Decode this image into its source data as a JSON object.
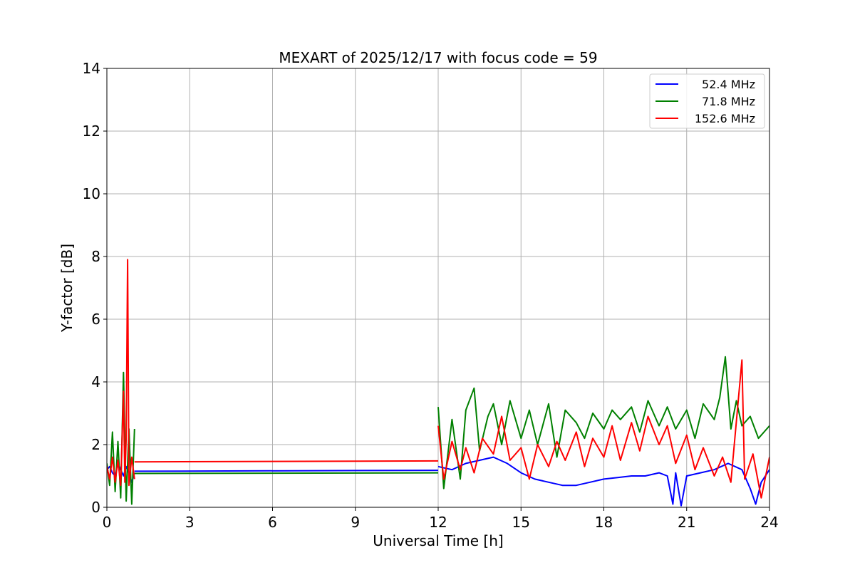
{
  "chart_data": {
    "type": "line",
    "title": "MEXART of 2025/12/17 with focus code = 59",
    "xlabel": "Universal Time [h]",
    "ylabel": "Y-factor [dB]",
    "xlim": [
      0,
      24
    ],
    "ylim": [
      0,
      14
    ],
    "xticks": [
      0,
      3,
      6,
      9,
      12,
      15,
      18,
      21,
      24
    ],
    "yticks": [
      0,
      2,
      4,
      6,
      8,
      10,
      12,
      14
    ],
    "grid": true,
    "legend_position": "top-right",
    "series": [
      {
        "name": "52.4 MHz",
        "color": "#0000ff",
        "segments": [
          [
            [
              0.0,
              1.2
            ],
            [
              0.1,
              1.3
            ],
            [
              0.2,
              1.1
            ],
            [
              0.3,
              1.0
            ],
            [
              0.4,
              1.4
            ],
            [
              0.5,
              1.2
            ],
            [
              0.6,
              1.0
            ],
            [
              0.7,
              1.3
            ],
            [
              0.8,
              1.1
            ],
            [
              0.9,
              0.8
            ],
            [
              1.0,
              1.1
            ]
          ],
          [
            [
              1.0,
              1.15
            ],
            [
              12.0,
              1.18
            ]
          ],
          [
            [
              12.0,
              1.3
            ],
            [
              12.5,
              1.2
            ],
            [
              13.0,
              1.4
            ],
            [
              13.5,
              1.5
            ],
            [
              14.0,
              1.6
            ],
            [
              14.5,
              1.4
            ],
            [
              15.0,
              1.1
            ],
            [
              15.5,
              0.9
            ],
            [
              16.0,
              0.8
            ],
            [
              16.5,
              0.7
            ],
            [
              17.0,
              0.7
            ],
            [
              17.5,
              0.8
            ],
            [
              18.0,
              0.9
            ],
            [
              18.5,
              0.95
            ],
            [
              19.0,
              1.0
            ],
            [
              19.5,
              1.0
            ],
            [
              20.0,
              1.1
            ],
            [
              20.3,
              1.0
            ],
            [
              20.5,
              0.1
            ],
            [
              20.6,
              1.1
            ],
            [
              20.8,
              0.05
            ],
            [
              21.0,
              1.0
            ],
            [
              21.5,
              1.1
            ],
            [
              22.0,
              1.2
            ],
            [
              22.5,
              1.4
            ],
            [
              23.0,
              1.2
            ],
            [
              23.3,
              0.6
            ],
            [
              23.5,
              0.1
            ],
            [
              23.7,
              0.8
            ],
            [
              24.0,
              1.2
            ]
          ]
        ]
      },
      {
        "name": "71.8 MHz",
        "color": "#008000",
        "segments": [
          [
            [
              0.0,
              1.4
            ],
            [
              0.1,
              0.7
            ],
            [
              0.2,
              2.4
            ],
            [
              0.3,
              0.5
            ],
            [
              0.4,
              2.1
            ],
            [
              0.5,
              0.3
            ],
            [
              0.6,
              4.3
            ],
            [
              0.7,
              0.2
            ],
            [
              0.8,
              2.5
            ],
            [
              0.9,
              0.1
            ],
            [
              1.0,
              2.5
            ]
          ],
          [
            [
              1.0,
              1.08
            ],
            [
              12.0,
              1.1
            ]
          ],
          [
            [
              12.0,
              3.2
            ],
            [
              12.2,
              0.6
            ],
            [
              12.5,
              2.8
            ],
            [
              12.8,
              0.9
            ],
            [
              13.0,
              3.1
            ],
            [
              13.3,
              3.8
            ],
            [
              13.5,
              1.8
            ],
            [
              13.8,
              2.9
            ],
            [
              14.0,
              3.3
            ],
            [
              14.3,
              2.0
            ],
            [
              14.6,
              3.4
            ],
            [
              15.0,
              2.2
            ],
            [
              15.3,
              3.1
            ],
            [
              15.6,
              2.0
            ],
            [
              16.0,
              3.3
            ],
            [
              16.3,
              1.6
            ],
            [
              16.6,
              3.1
            ],
            [
              17.0,
              2.7
            ],
            [
              17.3,
              2.2
            ],
            [
              17.6,
              3.0
            ],
            [
              18.0,
              2.5
            ],
            [
              18.3,
              3.1
            ],
            [
              18.6,
              2.8
            ],
            [
              19.0,
              3.2
            ],
            [
              19.3,
              2.4
            ],
            [
              19.6,
              3.4
            ],
            [
              20.0,
              2.6
            ],
            [
              20.3,
              3.2
            ],
            [
              20.6,
              2.5
            ],
            [
              21.0,
              3.1
            ],
            [
              21.3,
              2.2
            ],
            [
              21.6,
              3.3
            ],
            [
              22.0,
              2.8
            ],
            [
              22.2,
              3.5
            ],
            [
              22.4,
              4.8
            ],
            [
              22.6,
              2.5
            ],
            [
              22.8,
              3.4
            ],
            [
              23.0,
              2.6
            ],
            [
              23.3,
              2.9
            ],
            [
              23.6,
              2.2
            ],
            [
              24.0,
              2.6
            ]
          ]
        ]
      },
      {
        "name": "152.6 MHz",
        "color": "#ff0000",
        "segments": [
          [
            [
              0.0,
              1.3
            ],
            [
              0.1,
              0.9
            ],
            [
              0.2,
              1.6
            ],
            [
              0.3,
              0.8
            ],
            [
              0.4,
              1.5
            ],
            [
              0.5,
              0.7
            ],
            [
              0.6,
              3.7
            ],
            [
              0.65,
              0.8
            ],
            [
              0.7,
              2.2
            ],
            [
              0.75,
              7.9
            ],
            [
              0.8,
              0.7
            ],
            [
              0.9,
              1.6
            ],
            [
              1.0,
              0.9
            ]
          ],
          [
            [
              1.0,
              1.45
            ],
            [
              12.0,
              1.48
            ]
          ],
          [
            [
              12.0,
              2.6
            ],
            [
              12.2,
              0.9
            ],
            [
              12.5,
              2.1
            ],
            [
              12.8,
              1.2
            ],
            [
              13.0,
              1.9
            ],
            [
              13.3,
              1.1
            ],
            [
              13.6,
              2.2
            ],
            [
              14.0,
              1.7
            ],
            [
              14.3,
              2.9
            ],
            [
              14.6,
              1.5
            ],
            [
              15.0,
              1.9
            ],
            [
              15.3,
              0.9
            ],
            [
              15.6,
              2.0
            ],
            [
              16.0,
              1.3
            ],
            [
              16.3,
              2.1
            ],
            [
              16.6,
              1.5
            ],
            [
              17.0,
              2.4
            ],
            [
              17.3,
              1.3
            ],
            [
              17.6,
              2.2
            ],
            [
              18.0,
              1.6
            ],
            [
              18.3,
              2.6
            ],
            [
              18.6,
              1.5
            ],
            [
              19.0,
              2.7
            ],
            [
              19.3,
              1.8
            ],
            [
              19.6,
              2.9
            ],
            [
              20.0,
              2.0
            ],
            [
              20.3,
              2.6
            ],
            [
              20.6,
              1.4
            ],
            [
              21.0,
              2.3
            ],
            [
              21.3,
              1.2
            ],
            [
              21.6,
              1.9
            ],
            [
              22.0,
              1.0
            ],
            [
              22.3,
              1.6
            ],
            [
              22.6,
              0.8
            ],
            [
              23.0,
              4.7
            ],
            [
              23.1,
              0.9
            ],
            [
              23.4,
              1.7
            ],
            [
              23.7,
              0.3
            ],
            [
              24.0,
              1.6
            ]
          ]
        ]
      }
    ]
  }
}
